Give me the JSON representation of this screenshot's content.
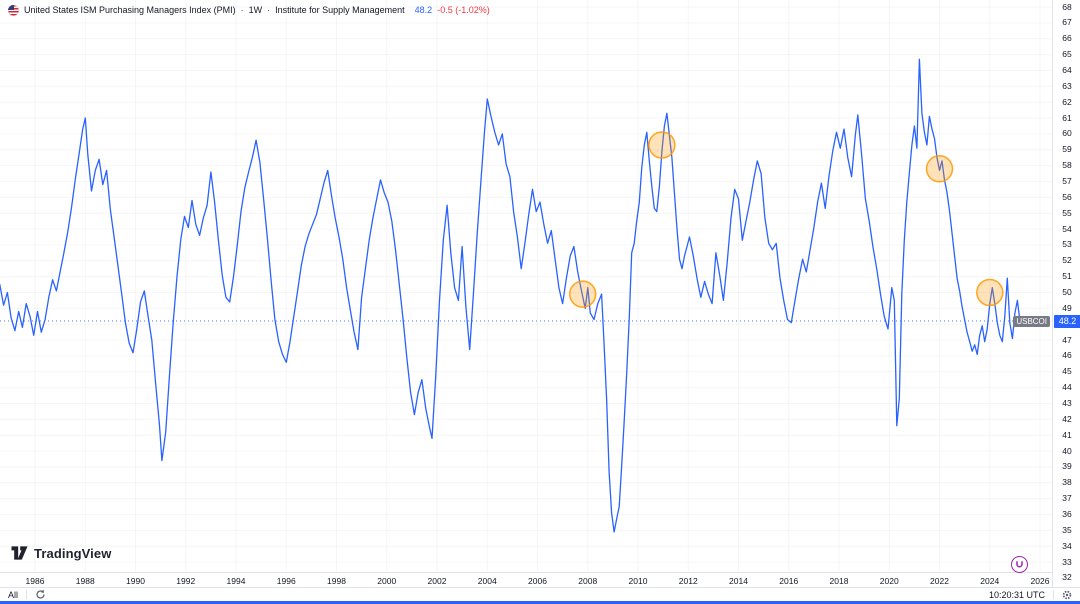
{
  "legend": {
    "title": "United States ISM Purchasing Managers Index (PMI)",
    "separator": "·",
    "interval": "1W",
    "source": "Institute for Supply Management",
    "last_value": "48.2",
    "change": "-0.5 (-1.02%)"
  },
  "watermark": {
    "text": "TradingView"
  },
  "toolbar": {
    "range_all": "All",
    "clock": "10:20:31 UTC"
  },
  "icons": {
    "flag": "us-round-flag",
    "go_to_date": "circular-arrow",
    "settings": "gear",
    "magnet": "magnet",
    "logo": "tradingview-mark"
  },
  "chart_data": {
    "type": "line",
    "title": "United States ISM Purchasing Managers Index (PMI)",
    "interval": "1W",
    "source": "Institute for Supply Management",
    "series_label": "USBCOI",
    "last_value": 48.2,
    "change": "-0.5 (-1.02%)",
    "line_color": "#2962ff",
    "highlight_color": "#ff9800",
    "grid": "faint",
    "legend_position": "top-left",
    "ylim": [
      32,
      68
    ],
    "y_tick_step": 1,
    "x_ticks": [
      1986,
      1988,
      1990,
      1992,
      1994,
      1996,
      1998,
      2000,
      2002,
      2004,
      2006,
      2008,
      2010,
      2012,
      2014,
      2016,
      2018,
      2020,
      2022,
      2024,
      2026
    ],
    "x_range": [
      1984.6,
      2026.8
    ],
    "price_line_value": 48.2,
    "highlights": [
      {
        "year": 2007.8,
        "value": 49.9
      },
      {
        "year": 2010.95,
        "value": 59.3
      },
      {
        "year": 2022.0,
        "value": 57.8
      },
      {
        "year": 2024.0,
        "value": 50.0
      }
    ],
    "points": [
      [
        1984.6,
        50.5
      ],
      [
        1984.75,
        49.2
      ],
      [
        1984.9,
        50.0
      ],
      [
        1985.05,
        48.4
      ],
      [
        1985.2,
        47.6
      ],
      [
        1985.35,
        48.8
      ],
      [
        1985.5,
        47.8
      ],
      [
        1985.65,
        49.3
      ],
      [
        1985.8,
        48.5
      ],
      [
        1985.95,
        47.3
      ],
      [
        1986.1,
        48.8
      ],
      [
        1986.25,
        47.5
      ],
      [
        1986.4,
        48.3
      ],
      [
        1986.55,
        49.7
      ],
      [
        1986.7,
        50.8
      ],
      [
        1986.85,
        50.1
      ],
      [
        1987.0,
        51.3
      ],
      [
        1987.15,
        52.5
      ],
      [
        1987.3,
        53.8
      ],
      [
        1987.45,
        55.3
      ],
      [
        1987.6,
        57.1
      ],
      [
        1987.75,
        58.7
      ],
      [
        1987.9,
        60.3
      ],
      [
        1988.0,
        61.0
      ],
      [
        1988.1,
        58.7
      ],
      [
        1988.25,
        56.4
      ],
      [
        1988.4,
        57.7
      ],
      [
        1988.55,
        58.4
      ],
      [
        1988.7,
        56.8
      ],
      [
        1988.85,
        57.7
      ],
      [
        1989.0,
        55.2
      ],
      [
        1989.15,
        53.5
      ],
      [
        1989.3,
        51.7
      ],
      [
        1989.45,
        49.9
      ],
      [
        1989.6,
        48.1
      ],
      [
        1989.75,
        46.8
      ],
      [
        1989.9,
        46.2
      ],
      [
        1990.05,
        47.7
      ],
      [
        1990.2,
        49.4
      ],
      [
        1990.35,
        50.1
      ],
      [
        1990.5,
        48.5
      ],
      [
        1990.65,
        47.0
      ],
      [
        1990.8,
        44.3
      ],
      [
        1990.95,
        41.7
      ],
      [
        1991.05,
        39.4
      ],
      [
        1991.2,
        41.2
      ],
      [
        1991.35,
        44.7
      ],
      [
        1991.5,
        48.1
      ],
      [
        1991.65,
        51.0
      ],
      [
        1991.8,
        53.3
      ],
      [
        1991.95,
        54.8
      ],
      [
        1992.1,
        54.1
      ],
      [
        1992.25,
        55.8
      ],
      [
        1992.4,
        54.3
      ],
      [
        1992.55,
        53.6
      ],
      [
        1992.7,
        54.7
      ],
      [
        1992.85,
        55.5
      ],
      [
        1993.0,
        57.6
      ],
      [
        1993.15,
        55.7
      ],
      [
        1993.3,
        53.3
      ],
      [
        1993.45,
        51.1
      ],
      [
        1993.6,
        49.7
      ],
      [
        1993.75,
        49.4
      ],
      [
        1993.9,
        51.0
      ],
      [
        1994.05,
        53.0
      ],
      [
        1994.2,
        55.1
      ],
      [
        1994.35,
        56.6
      ],
      [
        1994.5,
        57.6
      ],
      [
        1994.65,
        58.5
      ],
      [
        1994.8,
        59.6
      ],
      [
        1994.95,
        58.2
      ],
      [
        1995.1,
        55.9
      ],
      [
        1995.25,
        53.4
      ],
      [
        1995.4,
        50.7
      ],
      [
        1995.55,
        48.3
      ],
      [
        1995.7,
        46.9
      ],
      [
        1995.85,
        46.1
      ],
      [
        1996.0,
        45.6
      ],
      [
        1996.15,
        46.9
      ],
      [
        1996.3,
        48.5
      ],
      [
        1996.45,
        50.1
      ],
      [
        1996.6,
        51.7
      ],
      [
        1996.75,
        52.9
      ],
      [
        1996.9,
        53.7
      ],
      [
        1997.05,
        54.3
      ],
      [
        1997.2,
        54.9
      ],
      [
        1997.35,
        55.9
      ],
      [
        1997.5,
        56.9
      ],
      [
        1997.65,
        57.7
      ],
      [
        1997.8,
        56.1
      ],
      [
        1997.95,
        54.7
      ],
      [
        1998.1,
        53.5
      ],
      [
        1998.25,
        52.1
      ],
      [
        1998.4,
        50.3
      ],
      [
        1998.55,
        48.9
      ],
      [
        1998.7,
        47.5
      ],
      [
        1998.85,
        46.4
      ],
      [
        1999.0,
        49.7
      ],
      [
        1999.15,
        51.5
      ],
      [
        1999.3,
        53.3
      ],
      [
        1999.45,
        54.7
      ],
      [
        1999.6,
        55.9
      ],
      [
        1999.75,
        57.1
      ],
      [
        1999.9,
        56.3
      ],
      [
        2000.05,
        55.7
      ],
      [
        2000.2,
        54.5
      ],
      [
        2000.35,
        52.7
      ],
      [
        2000.5,
        50.5
      ],
      [
        2000.65,
        48.3
      ],
      [
        2000.8,
        45.9
      ],
      [
        2000.95,
        43.7
      ],
      [
        2001.1,
        42.3
      ],
      [
        2001.25,
        43.7
      ],
      [
        2001.4,
        44.5
      ],
      [
        2001.55,
        42.7
      ],
      [
        2001.7,
        41.5
      ],
      [
        2001.8,
        40.8
      ],
      [
        2001.95,
        44.7
      ],
      [
        2002.1,
        49.5
      ],
      [
        2002.25,
        53.3
      ],
      [
        2002.4,
        55.5
      ],
      [
        2002.55,
        52.5
      ],
      [
        2002.7,
        50.3
      ],
      [
        2002.85,
        49.5
      ],
      [
        2003.0,
        52.9
      ],
      [
        2003.15,
        49.1
      ],
      [
        2003.3,
        46.4
      ],
      [
        2003.45,
        49.9
      ],
      [
        2003.6,
        53.7
      ],
      [
        2003.75,
        57.1
      ],
      [
        2003.9,
        60.3
      ],
      [
        2004.0,
        62.2
      ],
      [
        2004.15,
        61.1
      ],
      [
        2004.3,
        60.1
      ],
      [
        2004.45,
        59.3
      ],
      [
        2004.6,
        60.0
      ],
      [
        2004.75,
        58.1
      ],
      [
        2004.9,
        57.3
      ],
      [
        2005.05,
        55.1
      ],
      [
        2005.2,
        53.5
      ],
      [
        2005.35,
        51.5
      ],
      [
        2005.5,
        53.1
      ],
      [
        2005.65,
        54.9
      ],
      [
        2005.8,
        56.5
      ],
      [
        2005.95,
        55.1
      ],
      [
        2006.1,
        55.7
      ],
      [
        2006.25,
        54.3
      ],
      [
        2006.4,
        53.1
      ],
      [
        2006.55,
        53.9
      ],
      [
        2006.7,
        52.1
      ],
      [
        2006.85,
        50.3
      ],
      [
        2007.0,
        49.3
      ],
      [
        2007.15,
        50.9
      ],
      [
        2007.3,
        52.3
      ],
      [
        2007.45,
        52.9
      ],
      [
        2007.6,
        51.3
      ],
      [
        2007.75,
        50.1
      ],
      [
        2007.9,
        49.0
      ],
      [
        2008.0,
        50.3
      ],
      [
        2008.1,
        48.7
      ],
      [
        2008.25,
        48.3
      ],
      [
        2008.4,
        49.3
      ],
      [
        2008.55,
        49.9
      ],
      [
        2008.65,
        46.7
      ],
      [
        2008.75,
        43.3
      ],
      [
        2008.85,
        38.7
      ],
      [
        2008.95,
        36.1
      ],
      [
        2009.05,
        34.9
      ],
      [
        2009.15,
        35.7
      ],
      [
        2009.25,
        36.5
      ],
      [
        2009.35,
        39.1
      ],
      [
        2009.45,
        41.9
      ],
      [
        2009.55,
        44.9
      ],
      [
        2009.65,
        48.3
      ],
      [
        2009.75,
        52.5
      ],
      [
        2009.85,
        53.1
      ],
      [
        2009.95,
        54.5
      ],
      [
        2010.05,
        55.7
      ],
      [
        2010.15,
        57.9
      ],
      [
        2010.25,
        59.3
      ],
      [
        2010.35,
        60.1
      ],
      [
        2010.45,
        58.3
      ],
      [
        2010.55,
        56.7
      ],
      [
        2010.65,
        55.3
      ],
      [
        2010.75,
        55.1
      ],
      [
        2010.85,
        56.7
      ],
      [
        2010.95,
        58.9
      ],
      [
        2011.05,
        60.5
      ],
      [
        2011.15,
        61.3
      ],
      [
        2011.25,
        59.9
      ],
      [
        2011.35,
        58.5
      ],
      [
        2011.45,
        56.3
      ],
      [
        2011.55,
        54.1
      ],
      [
        2011.65,
        52.1
      ],
      [
        2011.75,
        51.5
      ],
      [
        2011.85,
        52.3
      ],
      [
        2011.95,
        52.9
      ],
      [
        2012.05,
        53.5
      ],
      [
        2012.2,
        52.3
      ],
      [
        2012.35,
        50.9
      ],
      [
        2012.5,
        49.7
      ],
      [
        2012.65,
        50.7
      ],
      [
        2012.8,
        49.9
      ],
      [
        2012.95,
        49.3
      ],
      [
        2013.1,
        52.5
      ],
      [
        2013.25,
        51.1
      ],
      [
        2013.4,
        49.5
      ],
      [
        2013.55,
        51.9
      ],
      [
        2013.7,
        54.7
      ],
      [
        2013.85,
        56.5
      ],
      [
        2014.0,
        55.9
      ],
      [
        2014.15,
        53.3
      ],
      [
        2014.3,
        54.5
      ],
      [
        2014.45,
        55.7
      ],
      [
        2014.6,
        57.1
      ],
      [
        2014.75,
        58.3
      ],
      [
        2014.9,
        57.5
      ],
      [
        2015.05,
        54.7
      ],
      [
        2015.2,
        53.1
      ],
      [
        2015.35,
        52.7
      ],
      [
        2015.5,
        53.1
      ],
      [
        2015.65,
        50.9
      ],
      [
        2015.8,
        49.5
      ],
      [
        2015.95,
        48.3
      ],
      [
        2016.1,
        48.1
      ],
      [
        2016.25,
        49.5
      ],
      [
        2016.4,
        50.9
      ],
      [
        2016.55,
        52.1
      ],
      [
        2016.7,
        51.3
      ],
      [
        2016.85,
        52.7
      ],
      [
        2017.0,
        54.1
      ],
      [
        2017.15,
        55.7
      ],
      [
        2017.3,
        56.9
      ],
      [
        2017.45,
        55.3
      ],
      [
        2017.6,
        57.3
      ],
      [
        2017.75,
        58.9
      ],
      [
        2017.9,
        60.1
      ],
      [
        2018.05,
        59.1
      ],
      [
        2018.2,
        60.3
      ],
      [
        2018.35,
        58.5
      ],
      [
        2018.5,
        57.3
      ],
      [
        2018.65,
        59.9
      ],
      [
        2018.75,
        61.2
      ],
      [
        2018.9,
        58.7
      ],
      [
        2019.05,
        55.9
      ],
      [
        2019.2,
        54.5
      ],
      [
        2019.35,
        52.9
      ],
      [
        2019.5,
        51.5
      ],
      [
        2019.65,
        49.9
      ],
      [
        2019.8,
        48.5
      ],
      [
        2019.95,
        47.7
      ],
      [
        2020.1,
        50.3
      ],
      [
        2020.2,
        49.5
      ],
      [
        2020.3,
        41.6
      ],
      [
        2020.4,
        43.3
      ],
      [
        2020.5,
        49.9
      ],
      [
        2020.6,
        53.3
      ],
      [
        2020.7,
        55.7
      ],
      [
        2020.8,
        57.5
      ],
      [
        2020.9,
        59.3
      ],
      [
        2021.0,
        60.5
      ],
      [
        2021.1,
        59.1
      ],
      [
        2021.2,
        64.7
      ],
      [
        2021.3,
        61.3
      ],
      [
        2021.4,
        60.1
      ],
      [
        2021.5,
        59.3
      ],
      [
        2021.6,
        61.1
      ],
      [
        2021.7,
        60.3
      ],
      [
        2021.8,
        59.7
      ],
      [
        2021.9,
        58.5
      ],
      [
        2022.0,
        57.7
      ],
      [
        2022.1,
        58.3
      ],
      [
        2022.2,
        57.1
      ],
      [
        2022.3,
        56.3
      ],
      [
        2022.4,
        55.1
      ],
      [
        2022.5,
        53.7
      ],
      [
        2022.6,
        52.3
      ],
      [
        2022.7,
        50.9
      ],
      [
        2022.8,
        50.1
      ],
      [
        2022.9,
        49.1
      ],
      [
        2023.0,
        48.3
      ],
      [
        2023.1,
        47.5
      ],
      [
        2023.2,
        46.9
      ],
      [
        2023.3,
        46.3
      ],
      [
        2023.4,
        46.7
      ],
      [
        2023.5,
        46.1
      ],
      [
        2023.6,
        47.3
      ],
      [
        2023.7,
        47.9
      ],
      [
        2023.8,
        46.9
      ],
      [
        2023.9,
        47.7
      ],
      [
        2024.0,
        49.3
      ],
      [
        2024.1,
        50.3
      ],
      [
        2024.2,
        49.3
      ],
      [
        2024.3,
        48.1
      ],
      [
        2024.4,
        47.3
      ],
      [
        2024.5,
        46.9
      ],
      [
        2024.6,
        48.5
      ],
      [
        2024.7,
        50.9
      ],
      [
        2024.8,
        48.1
      ],
      [
        2024.9,
        47.1
      ],
      [
        2025.0,
        48.7
      ],
      [
        2025.1,
        49.5
      ],
      [
        2025.2,
        48.2
      ]
    ]
  }
}
